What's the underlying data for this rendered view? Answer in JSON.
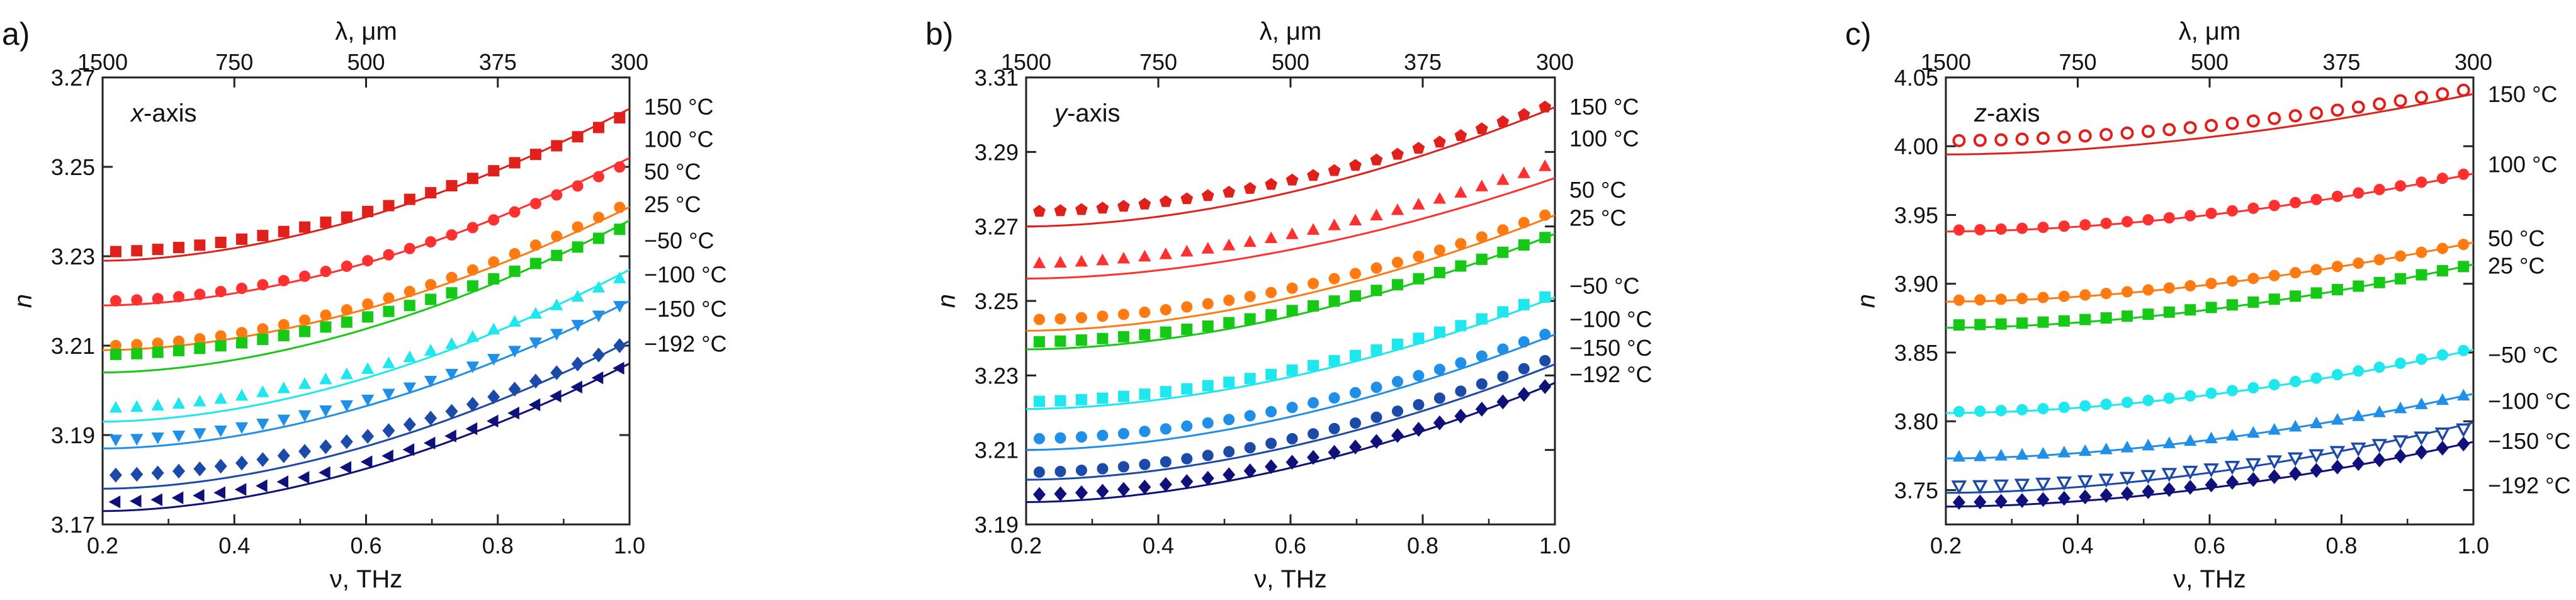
{
  "figure": {
    "nu_unit_label": "ν, THz",
    "lambda_unit_label": "λ, μm",
    "n_label": "n",
    "lambda_ticks": [
      "1500",
      "750",
      "500",
      "375",
      "300"
    ]
  },
  "chart_data": [
    {
      "type": "scatter",
      "panel_label": "a)",
      "axis_name": "x-axis",
      "axis_name_parts": [
        "x",
        "-axis"
      ],
      "xlabel": "ν, THz",
      "ylabel": "n",
      "top_xlabel": "λ, μm",
      "xlim": [
        0.2,
        1.0
      ],
      "ylim": [
        3.17,
        3.27
      ],
      "xticks": [
        0.2,
        0.4,
        0.6,
        0.8,
        1.0
      ],
      "yticks": [
        3.17,
        3.19,
        3.21,
        3.23,
        3.25,
        3.27
      ],
      "top_ticks": [
        "1500",
        "750",
        "500",
        "375",
        "300"
      ],
      "series": [
        {
          "name": "150 °C",
          "color": "#e0201b",
          "marker": "square",
          "fit": [
            3.229,
            3.263
          ],
          "pts": [
            3.231,
            3.262
          ],
          "label_value": 3.2635
        },
        {
          "name": "100 °C",
          "color": "#ff3030",
          "marker": "circle",
          "fit": [
            3.219,
            3.252
          ],
          "pts": [
            3.22,
            3.251
          ],
          "label_value": 3.2563
        },
        {
          "name": "50 °C",
          "color": "#ff7a10",
          "marker": "circle",
          "fit": [
            3.209,
            3.241
          ],
          "pts": [
            3.21,
            3.242
          ],
          "label_value": 3.249
        },
        {
          "name": "25 °C",
          "color": "#16c916",
          "marker": "square",
          "fit": [
            3.204,
            3.238
          ],
          "pts": [
            3.208,
            3.237
          ],
          "label_value": 3.2417
        },
        {
          "name": "−50 °C",
          "color": "#1ee8ee",
          "marker": "triangle-up",
          "fit": [
            3.193,
            3.227
          ],
          "pts": [
            3.196,
            3.226
          ],
          "label_value": 3.2336
        },
        {
          "name": "−100 °C",
          "color": "#1f8fe8",
          "marker": "triangle-down",
          "fit": [
            3.187,
            3.22
          ],
          "pts": [
            3.189,
            3.22
          ],
          "label_value": 3.226
        },
        {
          "name": "−150 °C",
          "color": "#1c4aa8",
          "marker": "diamond",
          "fit": [
            3.178,
            3.211
          ],
          "pts": [
            3.181,
            3.211
          ],
          "label_value": 3.2183
        },
        {
          "name": "−192 °C",
          "color": "#10107a",
          "marker": "triangle-left",
          "fit": [
            3.173,
            3.206
          ],
          "pts": [
            3.175,
            3.206
          ],
          "label_value": 3.2105
        }
      ]
    },
    {
      "type": "scatter",
      "panel_label": "b)",
      "axis_name": "y-axis",
      "axis_name_parts": [
        "y",
        "-axis"
      ],
      "xlabel": "ν, THz",
      "ylabel": "n",
      "top_xlabel": "λ, μm",
      "xlim": [
        0.2,
        1.0
      ],
      "ylim": [
        3.19,
        3.31
      ],
      "xticks": [
        0.2,
        0.4,
        0.6,
        0.8,
        1.0
      ],
      "yticks": [
        3.19,
        3.21,
        3.23,
        3.25,
        3.27,
        3.29,
        3.31
      ],
      "top_ticks": [
        "1500",
        "750",
        "500",
        "375",
        "300"
      ],
      "series": [
        {
          "name": "150 °C",
          "color": "#e0201b",
          "marker": "pentagon",
          "fit": [
            3.27,
            3.302
          ],
          "pts": [
            3.274,
            3.303
          ],
          "label_value": 3.3022
        },
        {
          "name": "100 °C",
          "color": "#ff3030",
          "marker": "triangle-up",
          "fit": [
            3.256,
            3.283
          ],
          "pts": [
            3.26,
            3.287
          ],
          "label_value": 3.2937
        },
        {
          "name": "50 °C",
          "color": "#ff7a10",
          "marker": "circle",
          "fit": [
            3.242,
            3.273
          ],
          "pts": [
            3.245,
            3.274
          ],
          "label_value": 3.2799
        },
        {
          "name": "25 °C",
          "color": "#16c916",
          "marker": "square",
          "fit": [
            3.237,
            3.268
          ],
          "pts": [
            3.239,
            3.268
          ],
          "label_value": 3.2724
        },
        {
          "name": "−50 °C",
          "color": "#1ee8ee",
          "marker": "square",
          "fit": [
            3.221,
            3.251
          ],
          "pts": [
            3.223,
            3.252
          ],
          "label_value": 3.2541
        },
        {
          "name": "−100 °C",
          "color": "#1f8fe8",
          "marker": "circle",
          "fit": [
            3.21,
            3.241
          ],
          "pts": [
            3.213,
            3.242
          ],
          "label_value": 3.2452
        },
        {
          "name": "−150 °C",
          "color": "#1c4aa8",
          "marker": "circle",
          "fit": [
            3.202,
            3.233
          ],
          "pts": [
            3.204,
            3.235
          ],
          "label_value": 3.2375
        },
        {
          "name": "−192 °C",
          "color": "#10107a",
          "marker": "diamond",
          "fit": [
            3.196,
            3.228
          ],
          "pts": [
            3.198,
            3.228
          ],
          "label_value": 3.2304
        }
      ]
    },
    {
      "type": "scatter",
      "panel_label": "c)",
      "axis_name": "z-axis",
      "axis_name_parts": [
        "z",
        "-axis"
      ],
      "xlabel": "ν, THz",
      "ylabel": "n",
      "top_xlabel": "λ, μm",
      "xlim": [
        0.2,
        1.0
      ],
      "ylim": [
        3.725,
        4.05
      ],
      "xticks": [
        0.2,
        0.4,
        0.6,
        0.8,
        1.0
      ],
      "yticks": [
        3.75,
        3.8,
        3.85,
        3.9,
        3.95,
        4.0,
        4.05
      ],
      "ytick_labels": [
        "3.75",
        "3.80",
        "3.85",
        "3.90",
        "3.95",
        "4.00",
        "4.05"
      ],
      "top_ticks": [
        "1500",
        "750",
        "500",
        "375",
        "300"
      ],
      "series": [
        {
          "name": "150 °C",
          "color": "#e0201b",
          "marker": "open-circle",
          "fit": [
            3.994,
            4.038
          ],
          "pts": [
            4.004,
            4.042
          ],
          "label_value": 4.038
        },
        {
          "name": "100 °C",
          "color": "#ff3030",
          "marker": "circle",
          "fit": [
            3.938,
            3.98
          ],
          "pts": [
            3.939,
            3.981
          ],
          "label_value": 3.987
        },
        {
          "name": "50 °C",
          "color": "#ff7a10",
          "marker": "circle",
          "fit": [
            3.887,
            3.93
          ],
          "pts": [
            3.888,
            3.93
          ],
          "label_value": 3.9333
        },
        {
          "name": "25 °C",
          "color": "#16c916",
          "marker": "square",
          "fit": [
            3.868,
            3.914
          ],
          "pts": [
            3.87,
            3.914
          ],
          "label_value": 3.9133
        },
        {
          "name": "−50 °C",
          "color": "#1ee8ee",
          "marker": "circle",
          "fit": [
            3.806,
            3.852
          ],
          "pts": [
            3.807,
            3.853
          ],
          "label_value": 3.8485
        },
        {
          "name": "−100 °C",
          "color": "#1f8fe8",
          "marker": "triangle-up",
          "fit": [
            3.773,
            3.82
          ],
          "pts": [
            3.774,
            3.82
          ],
          "label_value": 3.8149
        },
        {
          "name": "−150 °C",
          "color": "#1c4aa8",
          "marker": "open-triangle-down",
          "fit": [
            3.748,
            3.799
          ],
          "pts": [
            3.753,
            3.796
          ],
          "label_value": 3.7858
        },
        {
          "name": "−192 °C",
          "color": "#10107a",
          "marker": "diamond",
          "fit": [
            3.738,
            3.785
          ],
          "pts": [
            3.741,
            3.785
          ],
          "label_value": 3.7536
        }
      ]
    }
  ]
}
